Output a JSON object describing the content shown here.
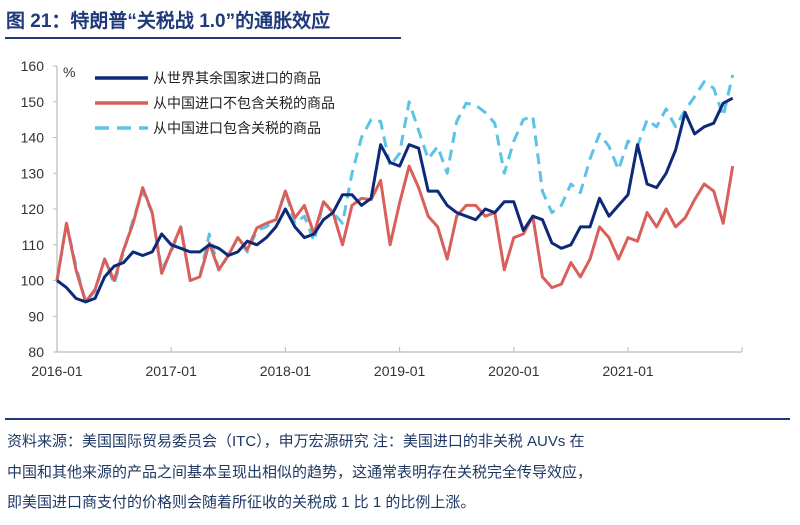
{
  "title": "图 21：特朗普“关税战 1.0”的通胀效应",
  "notes": [
    "资料来源：美国国际贸易委员会（ITC），申万宏源研究 注：美国进口的非关税 AUVs 在",
    "中国和其他来源的产品之间基本呈现出相似的趋势，这通常表明存在关税完全传导效应，",
    "即美国进口商支付的价格则会随着所征收的关税成 1 比 1 的比例上涨。"
  ],
  "chart_data": {
    "type": "line",
    "title": "",
    "xlabel": "",
    "ylabel": "%",
    "x_start": "2016-01",
    "x_frequency": "monthly",
    "x_ticks": [
      "2016-01",
      "2017-01",
      "2018-01",
      "2019-01",
      "2020-01",
      "2021-01"
    ],
    "ylim": [
      80,
      160
    ],
    "y_ticks": [
      80,
      90,
      100,
      110,
      120,
      130,
      140,
      150,
      160
    ],
    "grid": false,
    "legend_position": "top-left",
    "series": [
      {
        "name": "从世界其余国家进口的商品",
        "color": "#0d2a7a",
        "style": "solid",
        "values": [
          100,
          98,
          95,
          94,
          95,
          101,
          104,
          105,
          108,
          107,
          108,
          113,
          110,
          109,
          108,
          108,
          110,
          109,
          107,
          108,
          111,
          110,
          112,
          115,
          120,
          115,
          112,
          113,
          117,
          119,
          124,
          124,
          121,
          123,
          138,
          133,
          132,
          138,
          137,
          125,
          125,
          121,
          119,
          118,
          117,
          120,
          119,
          122,
          122,
          114,
          118,
          117,
          110.5,
          109,
          110,
          115,
          115,
          123,
          118,
          121,
          124,
          138,
          127,
          126,
          130,
          136.5,
          147,
          141,
          143,
          144,
          149.6,
          151
        ]
      },
      {
        "name": "从中国进口不包含关税的商品",
        "color": "#d9605a",
        "style": "solid",
        "values": [
          100,
          116,
          103,
          94,
          97.5,
          106,
          100,
          108.6,
          116,
          126,
          119,
          102,
          108.6,
          115,
          100,
          101,
          110.5,
          103,
          107,
          112,
          108.6,
          114.7,
          116,
          117,
          125,
          117.5,
          121,
          113,
          122,
          119,
          110,
          121,
          123,
          122.6,
          128,
          110,
          121.7,
          132,
          126,
          118,
          115,
          106,
          118,
          121,
          121,
          118,
          119,
          103,
          112,
          113,
          118,
          101,
          98,
          99,
          105,
          101,
          106,
          115,
          112,
          106,
          112,
          111,
          119,
          115,
          120,
          115,
          117.5,
          122.6,
          127,
          125,
          116,
          132
        ]
      },
      {
        "name": "从中国进口包含关税的商品",
        "color": "#5bc4e6",
        "style": "dashed",
        "values": [
          100,
          116,
          104,
          94,
          97,
          106,
          99,
          108,
          117,
          125,
          119,
          103,
          108,
          115,
          100,
          101,
          113,
          103,
          107,
          112,
          108,
          114,
          115,
          117,
          125,
          116,
          118,
          111,
          122,
          119,
          116,
          130,
          140,
          145,
          144.5,
          132,
          135.6,
          150,
          142,
          134,
          137.5,
          130,
          144.5,
          149.6,
          149,
          147,
          144,
          130,
          139,
          145,
          146,
          125,
          119,
          121,
          127,
          124.6,
          134,
          141,
          137.5,
          131,
          139,
          137.5,
          145,
          143,
          148,
          143,
          147.7,
          151.4,
          155.6,
          153.8,
          146,
          157.5
        ]
      }
    ]
  }
}
